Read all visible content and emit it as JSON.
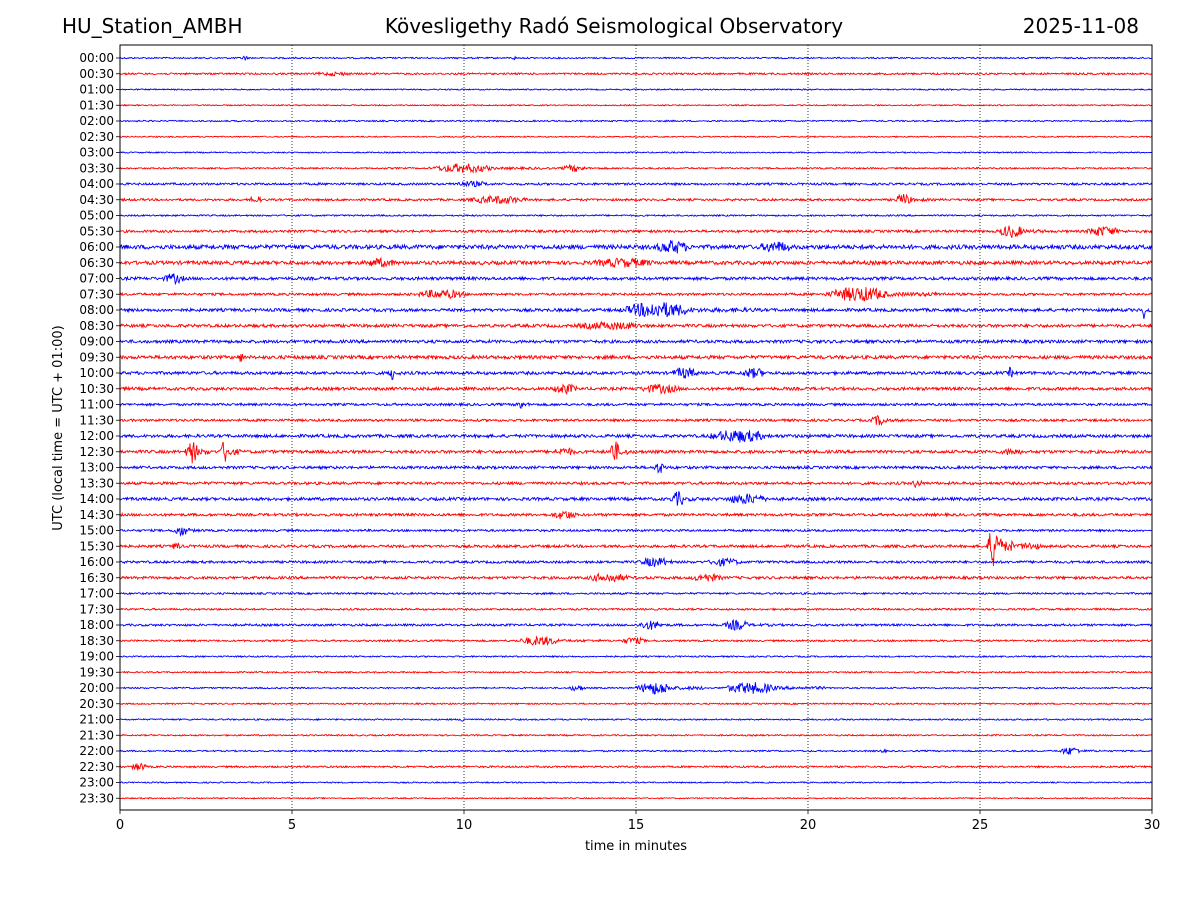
{
  "header": {
    "station": "HU_Station_AMBH",
    "observatory": "Kövesligethy Radó Seismological Observatory",
    "date": "2025-11-08"
  },
  "chart_data": {
    "type": "line",
    "title": "Kövesligethy Radó Seismological Observatory",
    "xlabel": "time in minutes",
    "ylabel": "UTC (local time = UTC + 01:00)",
    "xlim": [
      0,
      30
    ],
    "xticks": [
      0,
      5,
      10,
      15,
      20,
      25,
      30
    ],
    "grid": "vertical dotted lines at 5-minute intervals",
    "trace_colors": [
      "#0000ff",
      "#ff0000"
    ],
    "rows": [
      "00:00",
      "00:30",
      "01:00",
      "01:30",
      "02:00",
      "02:30",
      "03:00",
      "03:30",
      "04:00",
      "04:30",
      "05:00",
      "05:30",
      "06:00",
      "06:30",
      "07:00",
      "07:30",
      "08:00",
      "08:30",
      "09:00",
      "09:30",
      "10:00",
      "10:30",
      "11:00",
      "11:30",
      "12:00",
      "12:30",
      "13:00",
      "13:30",
      "14:00",
      "14:30",
      "15:00",
      "15:30",
      "16:00",
      "16:30",
      "17:00",
      "17:30",
      "18:00",
      "18:30",
      "19:00",
      "19:30",
      "20:00",
      "20:30",
      "21:00",
      "21:30",
      "22:00",
      "22:30",
      "23:00",
      "23:30"
    ],
    "baseline_noise": [
      0.12,
      0.15,
      0.1,
      0.1,
      0.12,
      0.1,
      0.1,
      0.13,
      0.18,
      0.18,
      0.13,
      0.2,
      0.35,
      0.3,
      0.25,
      0.2,
      0.25,
      0.25,
      0.25,
      0.28,
      0.25,
      0.25,
      0.2,
      0.2,
      0.25,
      0.25,
      0.22,
      0.22,
      0.25,
      0.22,
      0.18,
      0.22,
      0.2,
      0.22,
      0.15,
      0.15,
      0.18,
      0.15,
      0.12,
      0.12,
      0.12,
      0.12,
      0.12,
      0.12,
      0.12,
      0.15,
      0.1,
      0.1
    ],
    "events": [
      {
        "row": "00:00",
        "start_min": 3.5,
        "end_min": 3.9,
        "amplitude": 0.5
      },
      {
        "row": "00:00",
        "start_min": 11.4,
        "end_min": 11.6,
        "amplitude": 0.4
      },
      {
        "row": "00:30",
        "start_min": 5.5,
        "end_min": 8.0,
        "amplitude": 0.35
      },
      {
        "row": "03:30",
        "start_min": 9.0,
        "end_min": 12.5,
        "amplitude": 0.8
      },
      {
        "row": "03:30",
        "start_min": 12.8,
        "end_min": 14.2,
        "amplitude": 0.6
      },
      {
        "row": "04:00",
        "start_min": 9.5,
        "end_min": 12.0,
        "amplitude": 0.5
      },
      {
        "row": "04:30",
        "start_min": 3.8,
        "end_min": 4.1,
        "amplitude": 1.6
      },
      {
        "row": "04:30",
        "start_min": 10.0,
        "end_min": 13.5,
        "amplitude": 0.7
      },
      {
        "row": "04:30",
        "start_min": 22.5,
        "end_min": 23.5,
        "amplitude": 1.0
      },
      {
        "row": "05:30",
        "start_min": 25.5,
        "end_min": 27.0,
        "amplitude": 1.1
      },
      {
        "row": "05:30",
        "start_min": 28.0,
        "end_min": 30.0,
        "amplitude": 0.9
      },
      {
        "row": "06:00",
        "start_min": 15.5,
        "end_min": 17.5,
        "amplitude": 1.2
      },
      {
        "row": "06:00",
        "start_min": 18.5,
        "end_min": 20.5,
        "amplitude": 1.0
      },
      {
        "row": "06:30",
        "start_min": 7.0,
        "end_min": 9.0,
        "amplitude": 0.8
      },
      {
        "row": "06:30",
        "start_min": 13.5,
        "end_min": 17.5,
        "amplitude": 0.8
      },
      {
        "row": "07:00",
        "start_min": 1.2,
        "end_min": 2.5,
        "amplitude": 0.9
      },
      {
        "row": "07:30",
        "start_min": 8.5,
        "end_min": 11.5,
        "amplitude": 0.8
      },
      {
        "row": "07:30",
        "start_min": 20.5,
        "end_min": 24.0,
        "amplitude": 1.3
      },
      {
        "row": "08:00",
        "start_min": 14.5,
        "end_min": 18.5,
        "amplitude": 1.4
      },
      {
        "row": "08:00",
        "start_min": 29.7,
        "end_min": 30.0,
        "amplitude": 1.6
      },
      {
        "row": "08:30",
        "start_min": 13.0,
        "end_min": 17.5,
        "amplitude": 0.7
      },
      {
        "row": "09:30",
        "start_min": 3.4,
        "end_min": 3.8,
        "amplitude": 0.9
      },
      {
        "row": "10:00",
        "start_min": 7.8,
        "end_min": 8.2,
        "amplitude": 1.2
      },
      {
        "row": "10:00",
        "start_min": 16.0,
        "end_min": 17.5,
        "amplitude": 1.0
      },
      {
        "row": "10:00",
        "start_min": 18.0,
        "end_min": 19.5,
        "amplitude": 0.9
      },
      {
        "row": "10:00",
        "start_min": 25.8,
        "end_min": 26.1,
        "amplitude": 1.0
      },
      {
        "row": "10:30",
        "start_min": 12.5,
        "end_min": 14.0,
        "amplitude": 0.9
      },
      {
        "row": "10:30",
        "start_min": 15.0,
        "end_min": 17.5,
        "amplitude": 0.8
      },
      {
        "row": "11:00",
        "start_min": 11.5,
        "end_min": 11.9,
        "amplitude": 1.1
      },
      {
        "row": "11:30",
        "start_min": 21.8,
        "end_min": 22.8,
        "amplitude": 0.9
      },
      {
        "row": "12:00",
        "start_min": 17.0,
        "end_min": 20.5,
        "amplitude": 1.1
      },
      {
        "row": "12:30",
        "start_min": 1.9,
        "end_min": 2.6,
        "amplitude": 2.0
      },
      {
        "row": "12:30",
        "start_min": 2.9,
        "end_min": 3.5,
        "amplitude": 2.0
      },
      {
        "row": "12:30",
        "start_min": 14.2,
        "end_min": 14.8,
        "amplitude": 2.0
      },
      {
        "row": "12:30",
        "start_min": 12.5,
        "end_min": 14.0,
        "amplitude": 0.7
      },
      {
        "row": "12:30",
        "start_min": 25.5,
        "end_min": 27.0,
        "amplitude": 0.6
      },
      {
        "row": "13:00",
        "start_min": 15.5,
        "end_min": 16.2,
        "amplitude": 1.0
      },
      {
        "row": "13:30",
        "start_min": 23.0,
        "end_min": 23.6,
        "amplitude": 0.8
      },
      {
        "row": "14:00",
        "start_min": 16.0,
        "end_min": 16.8,
        "amplitude": 1.3
      },
      {
        "row": "14:00",
        "start_min": 17.5,
        "end_min": 20.0,
        "amplitude": 0.9
      },
      {
        "row": "14:30",
        "start_min": 12.5,
        "end_min": 14.0,
        "amplitude": 0.8
      },
      {
        "row": "15:00",
        "start_min": 1.5,
        "end_min": 2.5,
        "amplitude": 0.9
      },
      {
        "row": "15:30",
        "start_min": 25.2,
        "end_min": 26.0,
        "amplitude": 3.5
      },
      {
        "row": "15:30",
        "start_min": 26.0,
        "end_min": 27.5,
        "amplitude": 0.7
      },
      {
        "row": "15:30",
        "start_min": 1.5,
        "end_min": 2.0,
        "amplitude": 0.8
      },
      {
        "row": "16:00",
        "start_min": 15.0,
        "end_min": 17.0,
        "amplitude": 0.8
      },
      {
        "row": "16:00",
        "start_min": 17.0,
        "end_min": 19.0,
        "amplitude": 0.7
      },
      {
        "row": "16:30",
        "start_min": 13.5,
        "end_min": 16.0,
        "amplitude": 0.8
      },
      {
        "row": "16:30",
        "start_min": 16.5,
        "end_min": 18.5,
        "amplitude": 0.7
      },
      {
        "row": "18:00",
        "start_min": 15.0,
        "end_min": 16.5,
        "amplitude": 0.8
      },
      {
        "row": "18:00",
        "start_min": 17.5,
        "end_min": 19.0,
        "amplitude": 0.9
      },
      {
        "row": "18:30",
        "start_min": 11.5,
        "end_min": 14.0,
        "amplitude": 0.8
      },
      {
        "row": "18:30",
        "start_min": 14.5,
        "end_min": 16.0,
        "amplitude": 0.6
      },
      {
        "row": "20:00",
        "start_min": 13.0,
        "end_min": 14.0,
        "amplitude": 0.5
      },
      {
        "row": "20:00",
        "start_min": 15.0,
        "end_min": 17.0,
        "amplitude": 1.1
      },
      {
        "row": "20:00",
        "start_min": 17.5,
        "end_min": 20.5,
        "amplitude": 1.0
      },
      {
        "row": "21:00",
        "start_min": 9.9,
        "end_min": 10.2,
        "amplitude": 0.6
      },
      {
        "row": "22:00",
        "start_min": 22.1,
        "end_min": 22.3,
        "amplitude": 0.8
      },
      {
        "row": "22:00",
        "start_min": 27.3,
        "end_min": 28.5,
        "amplitude": 0.7
      },
      {
        "row": "22:30",
        "start_min": 0.3,
        "end_min": 1.2,
        "amplitude": 0.7
      }
    ]
  }
}
